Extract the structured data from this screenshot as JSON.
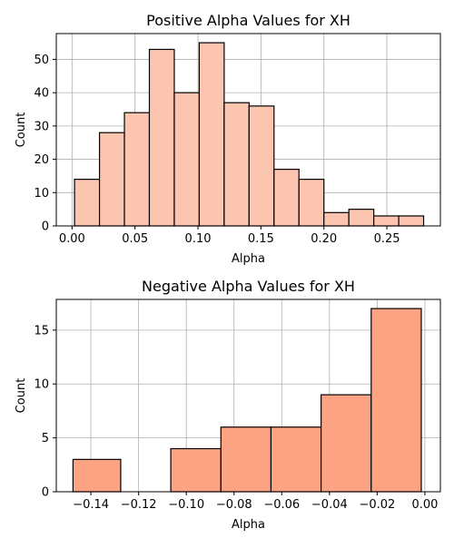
{
  "chart_data": [
    {
      "type": "bar",
      "subtype": "histogram",
      "title": "Positive Alpha Values for XH",
      "xlabel": "Alpha",
      "ylabel": "Count",
      "color": "#fcc5b0",
      "xlim": [
        -0.0125,
        0.2925
      ],
      "ylim": [
        0,
        57.75
      ],
      "grid": true,
      "xticks": [
        0.0,
        0.05,
        0.1,
        0.15,
        0.2,
        0.25
      ],
      "xtick_labels": [
        "0.00",
        "0.05",
        "0.10",
        "0.15",
        "0.20",
        "0.25"
      ],
      "yticks": [
        0,
        10,
        20,
        30,
        40,
        50
      ],
      "ytick_labels": [
        "0",
        "10",
        "20",
        "30",
        "40",
        "50"
      ],
      "bin_edges": [
        0.002,
        0.0218,
        0.0416,
        0.0614,
        0.0812,
        0.101,
        0.1208,
        0.1406,
        0.1604,
        0.1802,
        0.2,
        0.2198,
        0.2396,
        0.2594,
        0.2792
      ],
      "values": [
        14,
        28,
        34,
        53,
        40,
        55,
        37,
        36,
        17,
        14,
        4,
        5,
        3,
        3
      ]
    },
    {
      "type": "bar",
      "subtype": "histogram",
      "title": "Negative Alpha Values for XH",
      "xlabel": "Alpha",
      "ylabel": "Count",
      "color": "#fca383",
      "xlim": [
        -0.1545,
        0.0065
      ],
      "ylim": [
        0,
        17.85
      ],
      "grid": true,
      "xticks": [
        -0.14,
        -0.12,
        -0.1,
        -0.08,
        -0.06,
        -0.04,
        -0.02,
        0.0
      ],
      "xtick_labels": [
        "−0.14",
        "−0.12",
        "−0.10",
        "−0.08",
        "−0.06",
        "−0.04",
        "−0.02",
        "0.00"
      ],
      "yticks": [
        0,
        5,
        10,
        15
      ],
      "ytick_labels": [
        "0",
        "5",
        "10",
        "15"
      ],
      "bin_edges": [
        -0.1475,
        -0.1275,
        -0.1065,
        -0.0855,
        -0.0645,
        -0.0435,
        -0.0225,
        -0.0015
      ],
      "values": [
        3,
        0,
        4,
        6,
        6,
        9,
        17
      ]
    }
  ]
}
